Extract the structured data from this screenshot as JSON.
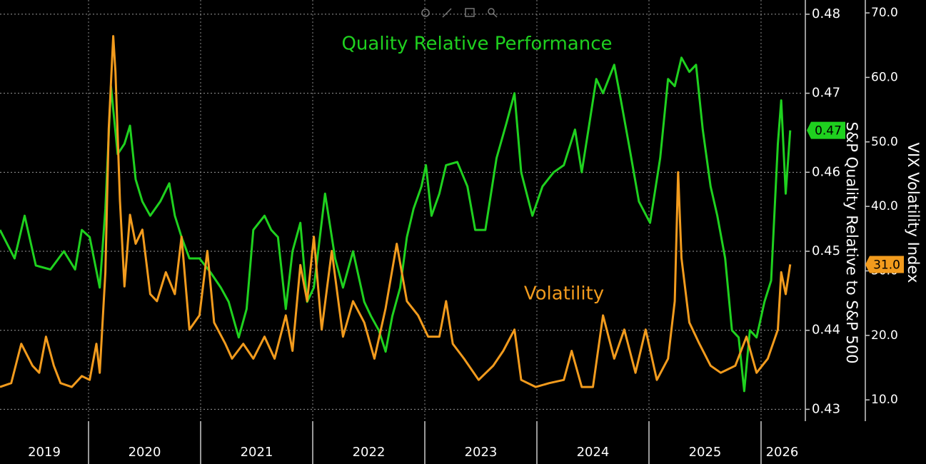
{
  "chart_data": {
    "type": "line",
    "annotations": [
      "Quality Relative Performance",
      "Volatility"
    ],
    "ylabel": "S&P Quality Relative to S&P 500",
    "y2label": "VIX Volatility Index",
    "xlim": [
      2019.21,
      2026.376
    ],
    "xticks": [
      2019,
      2020,
      2021,
      2022,
      2023,
      2024,
      2025,
      2026
    ],
    "ylim": [
      0.4285,
      0.4818
    ],
    "yticks": [
      0.43,
      0.44,
      0.45,
      0.46,
      0.47,
      0.48
    ],
    "y2lim": [
      6.7,
      72
    ],
    "y2ticks": [
      {
        "value": 10,
        "label": "10.0"
      },
      {
        "value": 20,
        "label": "20.0"
      },
      {
        "value": 30,
        "label": "30.0"
      },
      {
        "value": 40,
        "label": "40.0"
      },
      {
        "value": 50,
        "label": "50.0"
      },
      {
        "value": 60,
        "label": "60.0"
      },
      {
        "value": 70,
        "label": "70.0"
      }
    ],
    "grid": true,
    "series": [
      {
        "name": "Quality Relative Performance",
        "color": "#1fd11f",
        "axis": "y",
        "last_label": "0.47",
        "x": [
          2019.21,
          2019.34,
          2019.43,
          2019.53,
          2019.66,
          2019.78,
          2019.88,
          2019.94,
          2020.01,
          2020.1,
          2020.15,
          2020.2,
          2020.26,
          2020.32,
          2020.37,
          2020.42,
          2020.48,
          2020.55,
          2020.64,
          2020.72,
          2020.77,
          2020.83,
          2020.9,
          2020.99,
          2021.09,
          2021.18,
          2021.25,
          2021.34,
          2021.41,
          2021.47,
          2021.57,
          2021.63,
          2021.69,
          2021.76,
          2021.82,
          2021.89,
          2021.95,
          2022.01,
          2022.11,
          2022.2,
          2022.27,
          2022.36,
          2022.46,
          2022.52,
          2022.59,
          2022.65,
          2022.71,
          2022.78,
          2022.84,
          2022.9,
          2022.97,
          2023.01,
          2023.06,
          2023.13,
          2023.19,
          2023.29,
          2023.38,
          2023.45,
          2023.54,
          2023.64,
          2023.73,
          2023.8,
          2023.86,
          2023.96,
          2024.05,
          2024.15,
          2024.24,
          2024.34,
          2024.4,
          2024.46,
          2024.53,
          2024.59,
          2024.69,
          2024.75,
          2024.82,
          2024.91,
          2025.01,
          2025.1,
          2025.17,
          2025.23,
          2025.29,
          2025.36,
          2025.42,
          2025.48,
          2025.55,
          2025.61,
          2025.68,
          2025.74,
          2025.8,
          2025.85,
          2025.9,
          2025.96,
          2026.03,
          2026.09,
          2026.15,
          2026.18,
          2026.22,
          2026.26
        ],
        "values": [
          0.4527,
          0.4491,
          0.4545,
          0.4482,
          0.4477,
          0.45,
          0.4477,
          0.4527,
          0.4518,
          0.4454,
          0.4554,
          0.4709,
          0.4623,
          0.4636,
          0.4659,
          0.4591,
          0.4563,
          0.4545,
          0.4563,
          0.4586,
          0.4545,
          0.4518,
          0.4491,
          0.4491,
          0.4473,
          0.4454,
          0.4436,
          0.4391,
          0.4427,
          0.4527,
          0.4545,
          0.4527,
          0.4518,
          0.4427,
          0.45,
          0.4536,
          0.4436,
          0.4454,
          0.4573,
          0.4491,
          0.4454,
          0.45,
          0.4436,
          0.4418,
          0.44,
          0.4373,
          0.4418,
          0.4454,
          0.4518,
          0.4554,
          0.4582,
          0.4609,
          0.4545,
          0.4573,
          0.4609,
          0.4613,
          0.4582,
          0.4527,
          0.4527,
          0.4618,
          0.4663,
          0.47,
          0.46,
          0.4545,
          0.4582,
          0.46,
          0.4609,
          0.4654,
          0.46,
          0.4654,
          0.4718,
          0.47,
          0.4736,
          0.4691,
          0.4636,
          0.4563,
          0.4536,
          0.4618,
          0.4718,
          0.4709,
          0.4745,
          0.4727,
          0.4736,
          0.4654,
          0.4582,
          0.4545,
          0.4491,
          0.44,
          0.4391,
          0.4323,
          0.44,
          0.4391,
          0.4436,
          0.4463,
          0.4636,
          0.4691,
          0.4573,
          0.4653
        ]
      },
      {
        "name": "Volatility",
        "color": "#f29b1d",
        "axis": "y2",
        "last_label": "31.0",
        "x": [
          2019.21,
          2019.31,
          2019.4,
          2019.5,
          2019.56,
          2019.62,
          2019.69,
          2019.75,
          2019.85,
          2019.94,
          2020.01,
          2020.07,
          2020.1,
          2020.15,
          2020.18,
          2020.22,
          2020.24,
          2020.28,
          2020.32,
          2020.37,
          2020.42,
          2020.48,
          2020.55,
          2020.61,
          2020.69,
          2020.77,
          2020.83,
          2020.9,
          2020.99,
          2021.06,
          2021.12,
          2021.22,
          2021.28,
          2021.38,
          2021.47,
          2021.57,
          2021.66,
          2021.76,
          2021.82,
          2021.89,
          2021.95,
          2022.01,
          2022.08,
          2022.17,
          2022.27,
          2022.36,
          2022.46,
          2022.55,
          2022.65,
          2022.75,
          2022.84,
          2022.94,
          2023.03,
          2023.13,
          2023.19,
          2023.25,
          2023.35,
          2023.48,
          2023.61,
          2023.7,
          2023.8,
          2023.86,
          2023.99,
          2024.11,
          2024.24,
          2024.31,
          2024.4,
          2024.5,
          2024.59,
          2024.69,
          2024.78,
          2024.88,
          2024.97,
          2025.07,
          2025.17,
          2025.23,
          2025.26,
          2025.29,
          2025.36,
          2025.45,
          2025.55,
          2025.64,
          2025.77,
          2025.87,
          2025.96,
          2026.06,
          2026.15,
          2026.18,
          2026.22,
          2026.26
        ],
        "values": [
          12.0,
          12.6,
          18.7,
          15.3,
          14.2,
          19.8,
          15.3,
          12.6,
          12.0,
          13.7,
          13.1,
          18.7,
          14.2,
          29.8,
          52.0,
          66.4,
          60.9,
          40.9,
          27.6,
          38.7,
          34.2,
          36.4,
          26.4,
          25.3,
          29.8,
          26.4,
          35.3,
          20.9,
          23.1,
          33.1,
          22.0,
          18.7,
          16.4,
          18.7,
          16.4,
          19.8,
          16.4,
          23.1,
          17.6,
          30.9,
          25.3,
          35.3,
          20.9,
          33.1,
          19.8,
          25.3,
          22.0,
          16.4,
          24.2,
          34.2,
          25.3,
          23.1,
          19.8,
          19.8,
          25.3,
          18.7,
          16.4,
          13.1,
          15.3,
          17.6,
          20.9,
          13.1,
          12.0,
          12.6,
          13.1,
          17.6,
          12.0,
          12.0,
          23.1,
          16.4,
          20.9,
          14.2,
          20.9,
          13.1,
          16.4,
          25.3,
          45.3,
          32.0,
          22.0,
          18.7,
          15.3,
          14.2,
          15.3,
          19.8,
          14.2,
          16.4,
          20.9,
          29.8,
          26.4,
          31.0
        ]
      }
    ]
  }
}
